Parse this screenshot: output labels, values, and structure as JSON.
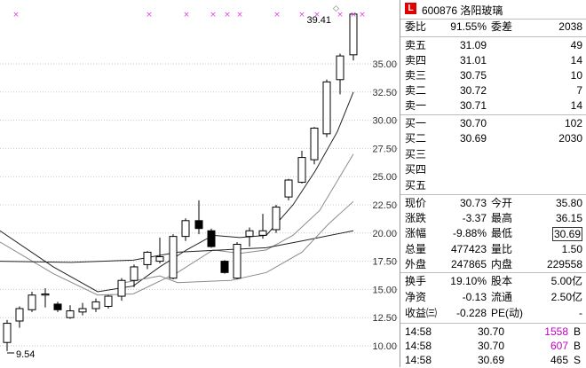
{
  "chart": {
    "y_ticks": [
      "35.00",
      "32.50",
      "30.00",
      "27.50",
      "25.00",
      "22.50",
      "20.00",
      "17.50",
      "15.00",
      "12.50",
      "10.00"
    ],
    "max_label": "39.41",
    "min_label": "9.54",
    "marker_glyph": "×",
    "markers": 12,
    "colors": {
      "up": "#000000",
      "down": "#000000",
      "ma_dark": "#222222",
      "ma_light": "#8a8a8a",
      "marker": "#e040e0",
      "grid": "#c7c7c7"
    }
  },
  "stock": {
    "code": "600876",
    "name": "洛阳玻璃",
    "logo": "L"
  },
  "weibi": {
    "label1": "委比",
    "value1": "91.55%",
    "label2": "委差",
    "value2": "2038"
  },
  "asks": [
    {
      "label": "卖五",
      "price": "31.09",
      "vol": "49"
    },
    {
      "label": "卖四",
      "price": "31.01",
      "vol": "14"
    },
    {
      "label": "卖三",
      "price": "30.75",
      "vol": "10"
    },
    {
      "label": "卖二",
      "price": "30.72",
      "vol": "7"
    },
    {
      "label": "卖一",
      "price": "30.71",
      "vol": "14"
    }
  ],
  "bids": [
    {
      "label": "买一",
      "price": "30.70",
      "vol": "102"
    },
    {
      "label": "买二",
      "price": "30.69",
      "vol": "2030"
    },
    {
      "label": "买三",
      "price": "",
      "vol": ""
    },
    {
      "label": "买四",
      "price": "",
      "vol": ""
    },
    {
      "label": "买五",
      "price": "",
      "vol": ""
    }
  ],
  "quote": [
    {
      "l1": "现价",
      "v1": "30.73",
      "l2": "今开",
      "v2": "35.80"
    },
    {
      "l1": "涨跌",
      "v1": "-3.37",
      "l2": "最高",
      "v2": "36.15"
    },
    {
      "l1": "涨幅",
      "v1": "-9.88%",
      "l2": "最低",
      "v2": "30.69"
    },
    {
      "l1": "总量",
      "v1": "477423",
      "l2": "量比",
      "v2": "1.50"
    },
    {
      "l1": "外盘",
      "v1": "247865",
      "l2": "内盘",
      "v2": "229558"
    }
  ],
  "fin": [
    {
      "l1": "换手",
      "v1": "19.10%",
      "l2": "股本",
      "v2": "5.00亿"
    },
    {
      "l1": "净资",
      "v1": "-0.13",
      "l2": "流通",
      "v2": "2.50亿"
    },
    {
      "l1": "收益㈢",
      "v1": "-0.228",
      "l2": "PE(动)",
      "v2": "-"
    }
  ],
  "ticks": [
    {
      "time": "14:58",
      "price": "30.70",
      "vol": "1558",
      "side": "B",
      "color": "#c000c0"
    },
    {
      "time": "14:58",
      "price": "30.70",
      "vol": "607",
      "side": "B",
      "color": "#c000c0"
    },
    {
      "time": "14:58",
      "price": "30.69",
      "vol": "465",
      "side": "S",
      "color": "#000000"
    }
  ]
}
